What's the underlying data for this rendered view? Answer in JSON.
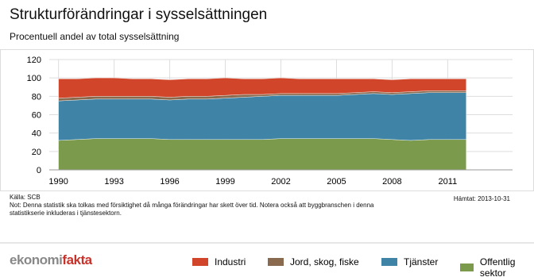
{
  "chart_data": {
    "type": "stacked-area",
    "title": "Strukturförändringar i sysselsättningen",
    "subtitle": "Procentuell andel av total sysselsättning",
    "source": "Källa: SCB",
    "note": "Not: Denna statistik ska tolkas med försiktighet då många förändringar har skett över tid. Notera också att byggbranschen i denna statistikserie inkluderas i tjänstesektorn.",
    "retrieved": "Hämtat: 2013-10-31",
    "logo": {
      "part1": "ekonomi",
      "part2": "fakta"
    },
    "x": [
      1990,
      1991,
      1992,
      1993,
      1994,
      1995,
      1996,
      1997,
      1998,
      1999,
      2000,
      2001,
      2002,
      2003,
      2004,
      2005,
      2006,
      2007,
      2008,
      2009,
      2010,
      2011,
      2012
    ],
    "series": [
      {
        "name": "Industri",
        "color": "#d1452b",
        "values": [
          21,
          20,
          20,
          20,
          19,
          19,
          19,
          19,
          19,
          19,
          17,
          17,
          17,
          16,
          16,
          16,
          15,
          14,
          14,
          14,
          13,
          13,
          13
        ]
      },
      {
        "name": "Jord, skog, fiske",
        "color": "#8a6a4e",
        "values": [
          3,
          3,
          3,
          3,
          3,
          3,
          3,
          3,
          3,
          3,
          3,
          2,
          2,
          2,
          2,
          2,
          2,
          2,
          2,
          2,
          2,
          2,
          2
        ]
      },
      {
        "name": "Tjänster",
        "color": "#3f84a7",
        "values": [
          43,
          43,
          43,
          43,
          43,
          43,
          43,
          44,
          44,
          45,
          46,
          47,
          47,
          47,
          47,
          47,
          48,
          49,
          49,
          51,
          51,
          51,
          51
        ]
      },
      {
        "name": "Offentlig sektor",
        "color": "#7c9a4c",
        "values": [
          32,
          33,
          34,
          34,
          34,
          34,
          33,
          33,
          33,
          33,
          33,
          33,
          34,
          34,
          34,
          34,
          34,
          34,
          33,
          32,
          33,
          33,
          33
        ]
      }
    ],
    "xlim": [
      1989.5,
      2014.5
    ],
    "xticks": [
      1990,
      1993,
      1996,
      1999,
      2002,
      2005,
      2008,
      2011
    ],
    "ylim": [
      0,
      120
    ],
    "yticks": [
      0,
      20,
      40,
      60,
      80,
      100,
      120
    ],
    "grid": true
  }
}
